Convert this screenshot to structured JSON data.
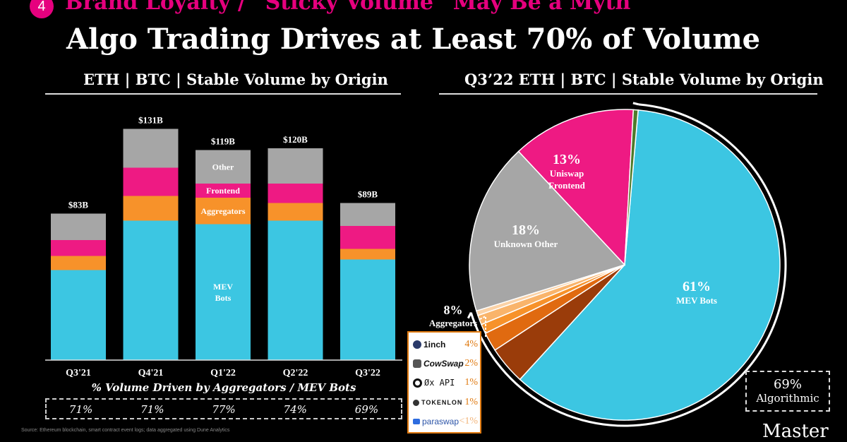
{
  "header": {
    "number": "4",
    "subtitle": "Brand Loyalty / “Sticky Volume” May Be a Myth",
    "title": "Algo Trading Drives at Least 70% of Volume"
  },
  "colors": {
    "mev": "#3cc6e2",
    "aggregators": "#f7922a",
    "frontend": "#ee1a83",
    "other": "#a6a6a6",
    "accent": "#e6007e"
  },
  "chart_data": [
    {
      "type": "bar",
      "stacked": true,
      "title": "ETH | BTC | Stable Volume by Origin",
      "categories": [
        "Q3'21",
        "Q4'21",
        "Q1'22",
        "Q2'22",
        "Q3'22"
      ],
      "totals_label": [
        "$83B",
        "$131B",
        "$119B",
        "$120B",
        "$89B"
      ],
      "totals": [
        83,
        131,
        119,
        120,
        89
      ],
      "series": [
        {
          "name": "MEV Bots",
          "values": [
            51,
            79,
            77,
            79,
            57
          ]
        },
        {
          "name": "Aggregators",
          "values": [
            8,
            14,
            15,
            10,
            6
          ]
        },
        {
          "name": "Frontend",
          "values": [
            9,
            16,
            8,
            11,
            13
          ]
        },
        {
          "name": "Other",
          "values": [
            15,
            22,
            19,
            20,
            13
          ]
        }
      ],
      "segment_labels": {
        "Other": "Other",
        "Frontend": "Frontend",
        "Aggregators": "Aggregators",
        "MEV Bots": [
          "MEV",
          "Bots"
        ]
      },
      "pct_caption": "% Volume Driven by Aggregators / MEV Bots",
      "pct_values": [
        "71%",
        "71%",
        "77%",
        "74%",
        "69%"
      ],
      "ylim": [
        0,
        140
      ]
    },
    {
      "type": "pie",
      "title": "Q3’22 ETH | BTC | Stable Volume by Origin",
      "slices": [
        {
          "label": "MEV Bots",
          "pct_label": "61%",
          "value": 61
        },
        {
          "label": "Aggregators: 1inch",
          "value": 4
        },
        {
          "label": "Aggregators: CowSwap",
          "value": 2
        },
        {
          "label": "Aggregators: 0x API",
          "value": 1
        },
        {
          "label": "Aggregators: Tokenlon",
          "value": 1
        },
        {
          "label": "Aggregators: Paraswap",
          "value": 0.5
        },
        {
          "label": "Unknown Other",
          "pct_label": "18%",
          "value": 18
        },
        {
          "label": "Uniswap Frontend",
          "pct_label": "13%",
          "value": 13
        },
        {
          "label": "Other small",
          "value": 0.5
        }
      ],
      "slice_text": {
        "mev_pct": "61%",
        "mev_name": "MEV Bots",
        "unknown_pct": "18%",
        "unknown_name": "Unknown Other",
        "uni_pct": "13%",
        "uni_name_1": "Uniswap",
        "uni_name_2": "Frontend",
        "agg_pct": "8%",
        "agg_name": "Aggregators"
      },
      "legend": [
        {
          "name": "1inch",
          "pct": "4%"
        },
        {
          "name": "CowSwap",
          "pct": "2%"
        },
        {
          "name": "Øx API",
          "pct": "1%"
        },
        {
          "name": "TOKENLON",
          "pct": "1%"
        },
        {
          "name": "paraswap",
          "pct": "<1%"
        }
      ],
      "algorithmic": {
        "pct": "69%",
        "label": "Algorithmic"
      }
    }
  ],
  "footer": {
    "source": "Source: Ethereum blockchain, smart contract event logs; data aggregated using Dune Analytics",
    "brand": "Master"
  }
}
